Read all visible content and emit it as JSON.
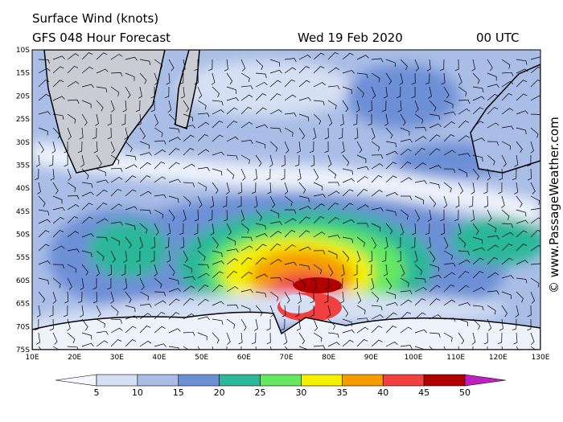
{
  "header": {
    "title": "Surface Wind (knots)",
    "subtitle": "GFS 048 Hour Forecast",
    "date": "Wed 19 Feb 2020",
    "time": "00 UTC"
  },
  "map": {
    "lat_labels": [
      "10S",
      "15S",
      "20S",
      "25S",
      "30S",
      "35S",
      "40S",
      "45S",
      "50S",
      "55S",
      "60S",
      "65S",
      "70S",
      "75S"
    ],
    "lon_labels": [
      "10E",
      "20E",
      "30E",
      "40E",
      "50E",
      "60E",
      "70E",
      "80E",
      "90E",
      "100E",
      "110E",
      "120E",
      "130E"
    ]
  },
  "colorbar": {
    "ticks": [
      5,
      10,
      15,
      20,
      25,
      30,
      35,
      40,
      45,
      50
    ],
    "colors": [
      "#f4f7ff",
      "#d6e0f4",
      "#a9bde6",
      "#6d8fd6",
      "#2cb79a",
      "#66e860",
      "#f5f000",
      "#f59c00",
      "#f04040",
      "#b00000",
      "#c020c0"
    ]
  },
  "credit": "© www.PassageWeather.com"
}
